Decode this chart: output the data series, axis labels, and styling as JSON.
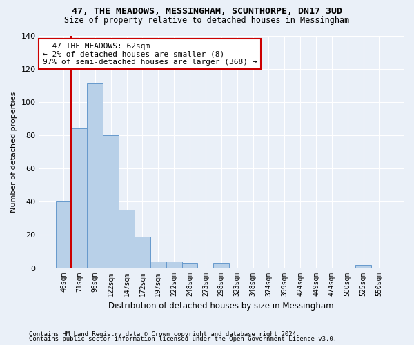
{
  "title": "47, THE MEADOWS, MESSINGHAM, SCUNTHORPE, DN17 3UD",
  "subtitle": "Size of property relative to detached houses in Messingham",
  "xlabel": "Distribution of detached houses by size in Messingham",
  "ylabel": "Number of detached properties",
  "footnote1": "Contains HM Land Registry data © Crown copyright and database right 2024.",
  "footnote2": "Contains public sector information licensed under the Open Government Licence v3.0.",
  "bar_color": "#b8d0e8",
  "bar_edge_color": "#6699cc",
  "background_color": "#eaf0f8",
  "grid_color": "#ffffff",
  "annotation_box_color": "#cc0000",
  "vline_color": "#cc0000",
  "categories": [
    "46sqm",
    "71sqm",
    "96sqm",
    "122sqm",
    "147sqm",
    "172sqm",
    "197sqm",
    "222sqm",
    "248sqm",
    "273sqm",
    "298sqm",
    "323sqm",
    "348sqm",
    "374sqm",
    "399sqm",
    "424sqm",
    "449sqm",
    "474sqm",
    "500sqm",
    "525sqm",
    "550sqm"
  ],
  "values": [
    40,
    84,
    111,
    80,
    35,
    19,
    4,
    4,
    3,
    0,
    3,
    0,
    0,
    0,
    0,
    0,
    0,
    0,
    0,
    2,
    0
  ],
  "vline_x": 0.5,
  "annotation_text": "  47 THE MEADOWS: 62sqm  \n← 2% of detached houses are smaller (8)\n97% of semi-detached houses are larger (368) →",
  "ylim": [
    0,
    140
  ],
  "yticks": [
    0,
    20,
    40,
    60,
    80,
    100,
    120,
    140
  ]
}
